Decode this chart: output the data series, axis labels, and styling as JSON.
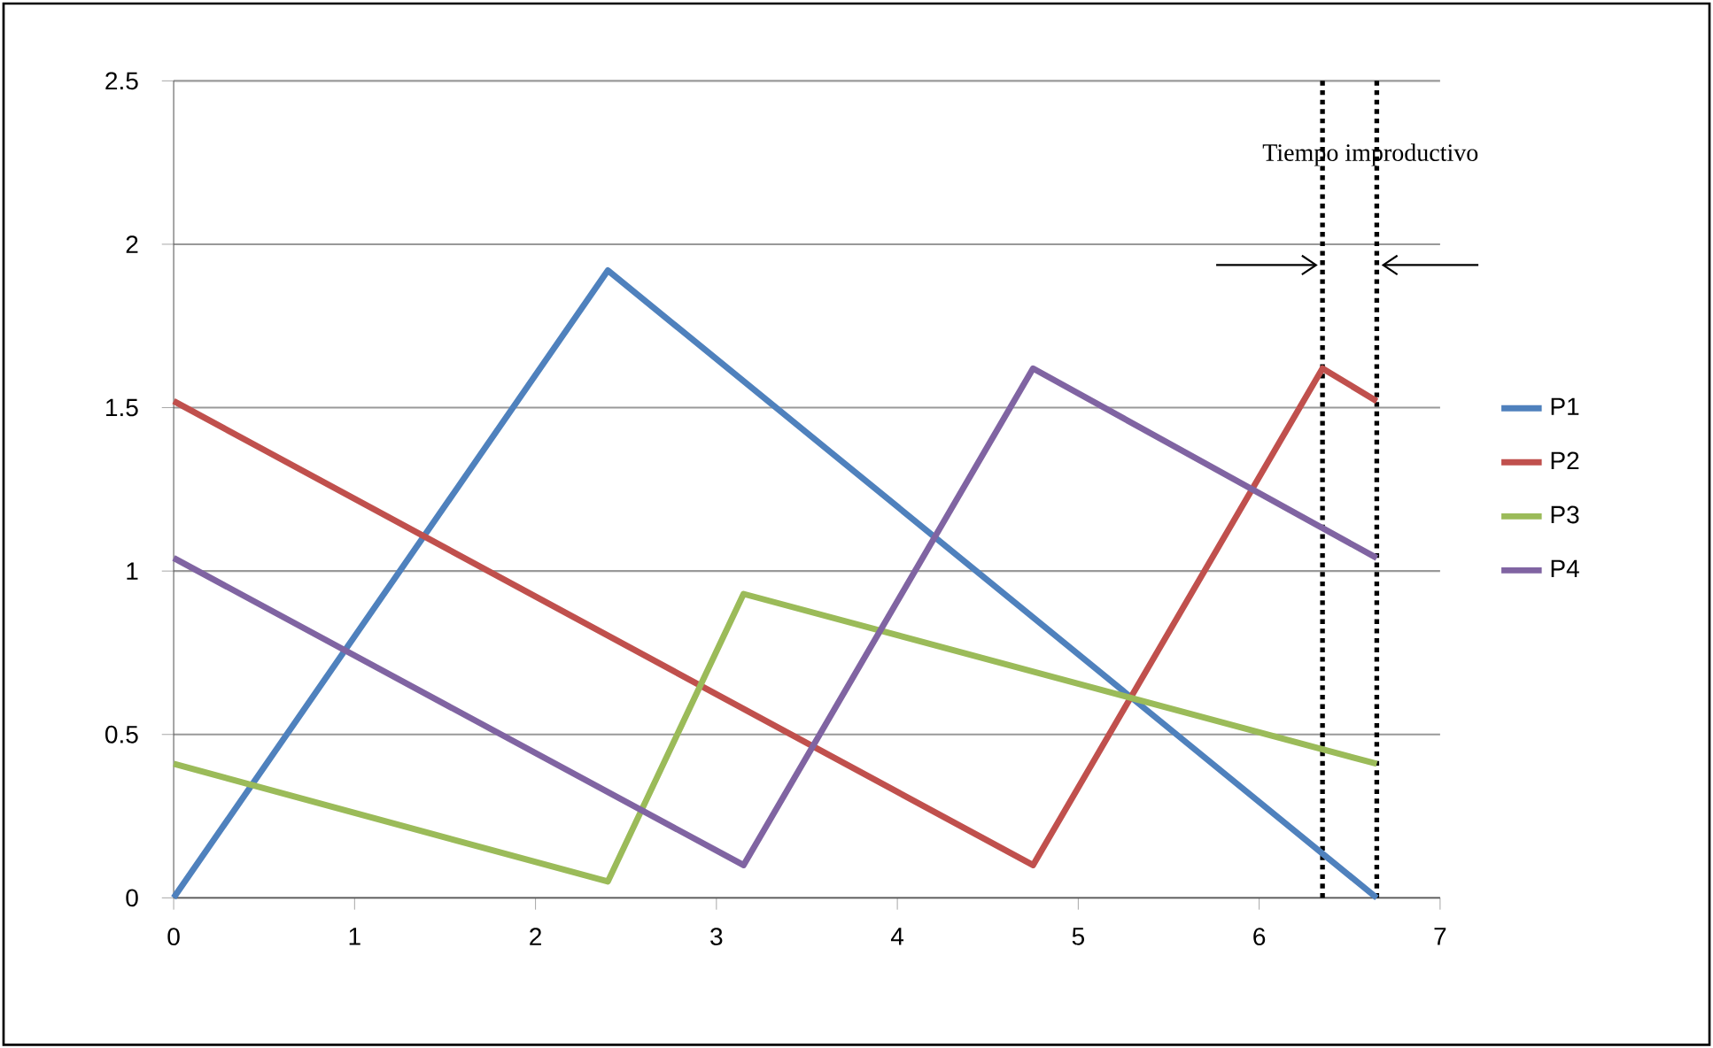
{
  "chart_data": {
    "type": "line",
    "xlim": [
      0,
      7
    ],
    "ylim": [
      0,
      2.5
    ],
    "xticks": [
      0,
      1,
      2,
      3,
      4,
      5,
      6,
      7
    ],
    "yticks": [
      0,
      0.5,
      1,
      1.5,
      2,
      2.5
    ],
    "grid": "y",
    "legend": "right",
    "marker": "none",
    "line_style": "solid",
    "series": [
      {
        "name": "P1",
        "color": "#4f81bd",
        "x": [
          0,
          2.4,
          6.65
        ],
        "values": [
          0,
          1.92,
          0
        ]
      },
      {
        "name": "P2",
        "color": "#c0504d",
        "x": [
          0,
          4.75,
          6.35,
          6.65
        ],
        "values": [
          1.52,
          0.1,
          1.62,
          1.52
        ]
      },
      {
        "name": "P3",
        "color": "#9bbb59",
        "x": [
          0,
          2.4,
          3.15,
          6.65
        ],
        "values": [
          0.41,
          0.05,
          0.93,
          0.41
        ]
      },
      {
        "name": "P4",
        "color": "#8064a2",
        "x": [
          0,
          3.15,
          4.75,
          6.65
        ],
        "values": [
          1.04,
          0.1,
          1.62,
          1.04
        ]
      }
    ],
    "ref_lines": [
      {
        "axis": "x",
        "value": 6.35,
        "color": "#000000",
        "line_style": "dotted"
      },
      {
        "axis": "x",
        "value": 6.65,
        "color": "#000000",
        "line_style": "dotted"
      }
    ],
    "annotations": [
      "Tiempo improductivo"
    ]
  }
}
